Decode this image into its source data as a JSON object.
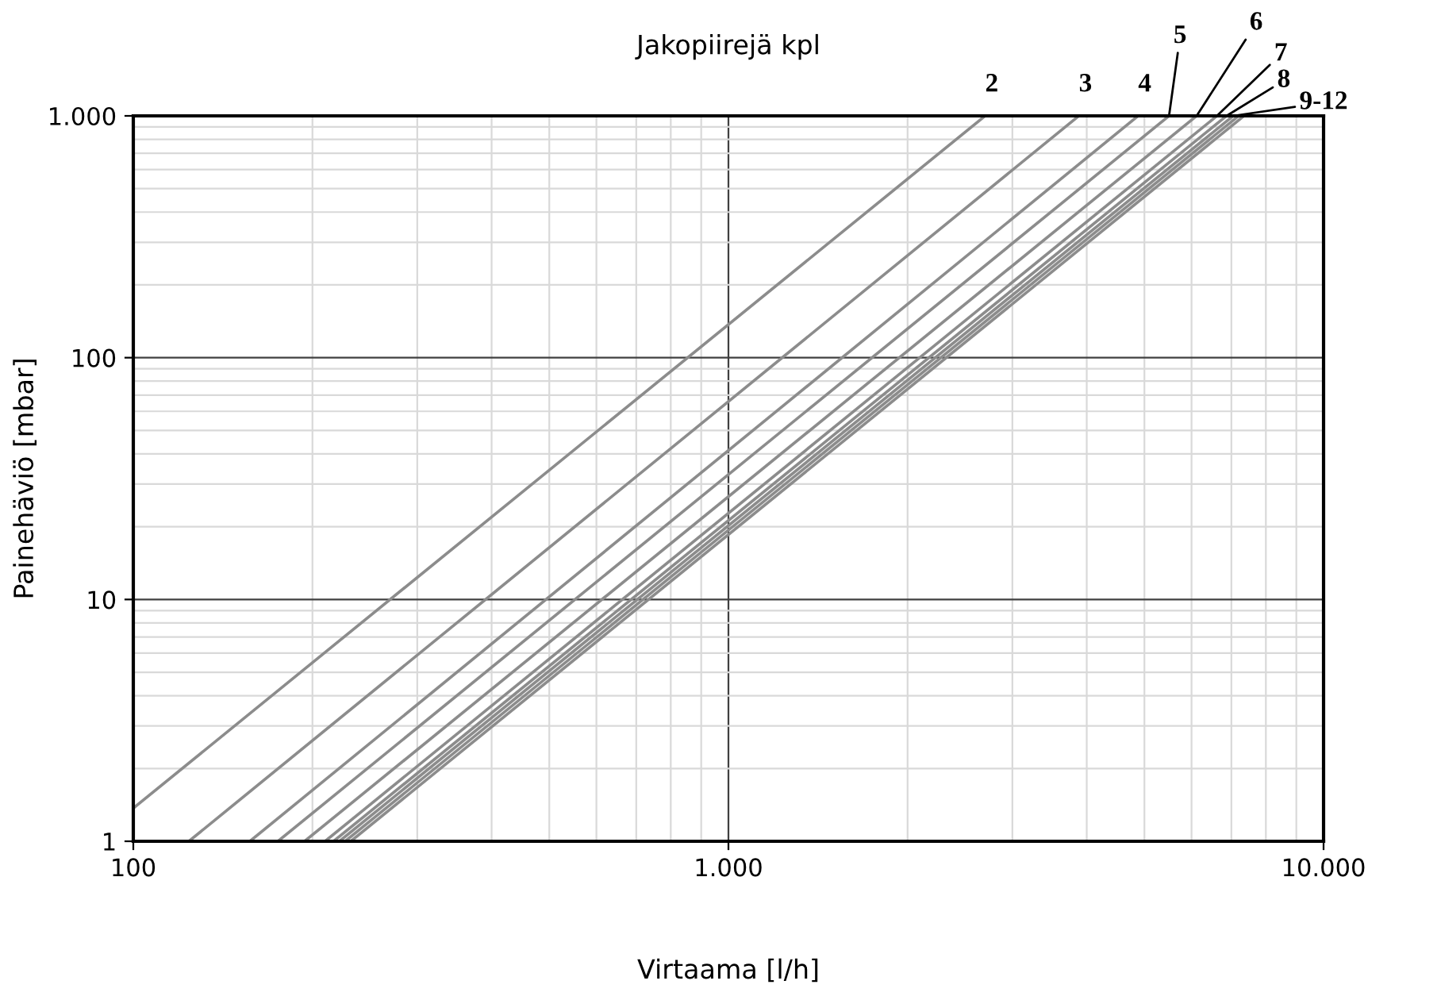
{
  "chart_data": {
    "type": "line",
    "title": "Jakopiirejä kpl",
    "xlabel": "Virtaama [l/h]",
    "ylabel": "Painehäviö [mbar]",
    "log": "xy",
    "grid": true,
    "marker": "none",
    "line_style": "solid",
    "xlim": [
      100,
      10000
    ],
    "ylim": [
      1,
      1000
    ],
    "xticks": [
      100,
      {
        "value": 1000,
        "label": "1.000"
      },
      {
        "value": 10000,
        "label": "10.000"
      }
    ],
    "yticks": [
      1,
      10,
      100,
      {
        "value": 1000,
        "label": "1.000"
      }
    ],
    "series": [
      {
        "name": "2",
        "color": "#8c8c8c",
        "x": [
          100,
          2700
        ],
        "values": [
          1.37,
          1000
        ]
      },
      {
        "name": "3",
        "color": "#8c8c8c",
        "x": [
          124,
          3880
        ],
        "values": [
          1,
          1000
        ]
      },
      {
        "name": "4",
        "color": "#8c8c8c",
        "x": [
          157,
          4880
        ],
        "values": [
          1,
          1000
        ]
      },
      {
        "name": "5",
        "color": "#8c8c8c",
        "x": [
          175,
          5500
        ],
        "values": [
          1,
          1000
        ]
      },
      {
        "name": "6",
        "color": "#8c8c8c",
        "x": [
          194,
          6120
        ],
        "values": [
          1,
          1000
        ]
      },
      {
        "name": "7",
        "color": "#8c8c8c",
        "x": [
          210,
          6620
        ],
        "values": [
          1,
          1000
        ]
      },
      {
        "name": "8",
        "color": "#8c8c8c",
        "x": [
          217,
          6870
        ],
        "values": [
          1,
          1000
        ]
      },
      {
        "name": "9-12",
        "color": "#8c8c8c",
        "x": [
          222,
          7050
        ],
        "values": [
          1,
          1000
        ]
      },
      {
        "color": "#8c8c8c",
        "x": [
          227,
          7200
        ],
        "values": [
          1,
          1000
        ]
      },
      {
        "color": "#8c8c8c",
        "x": [
          232,
          7350
        ],
        "values": [
          1,
          1000
        ]
      }
    ]
  }
}
